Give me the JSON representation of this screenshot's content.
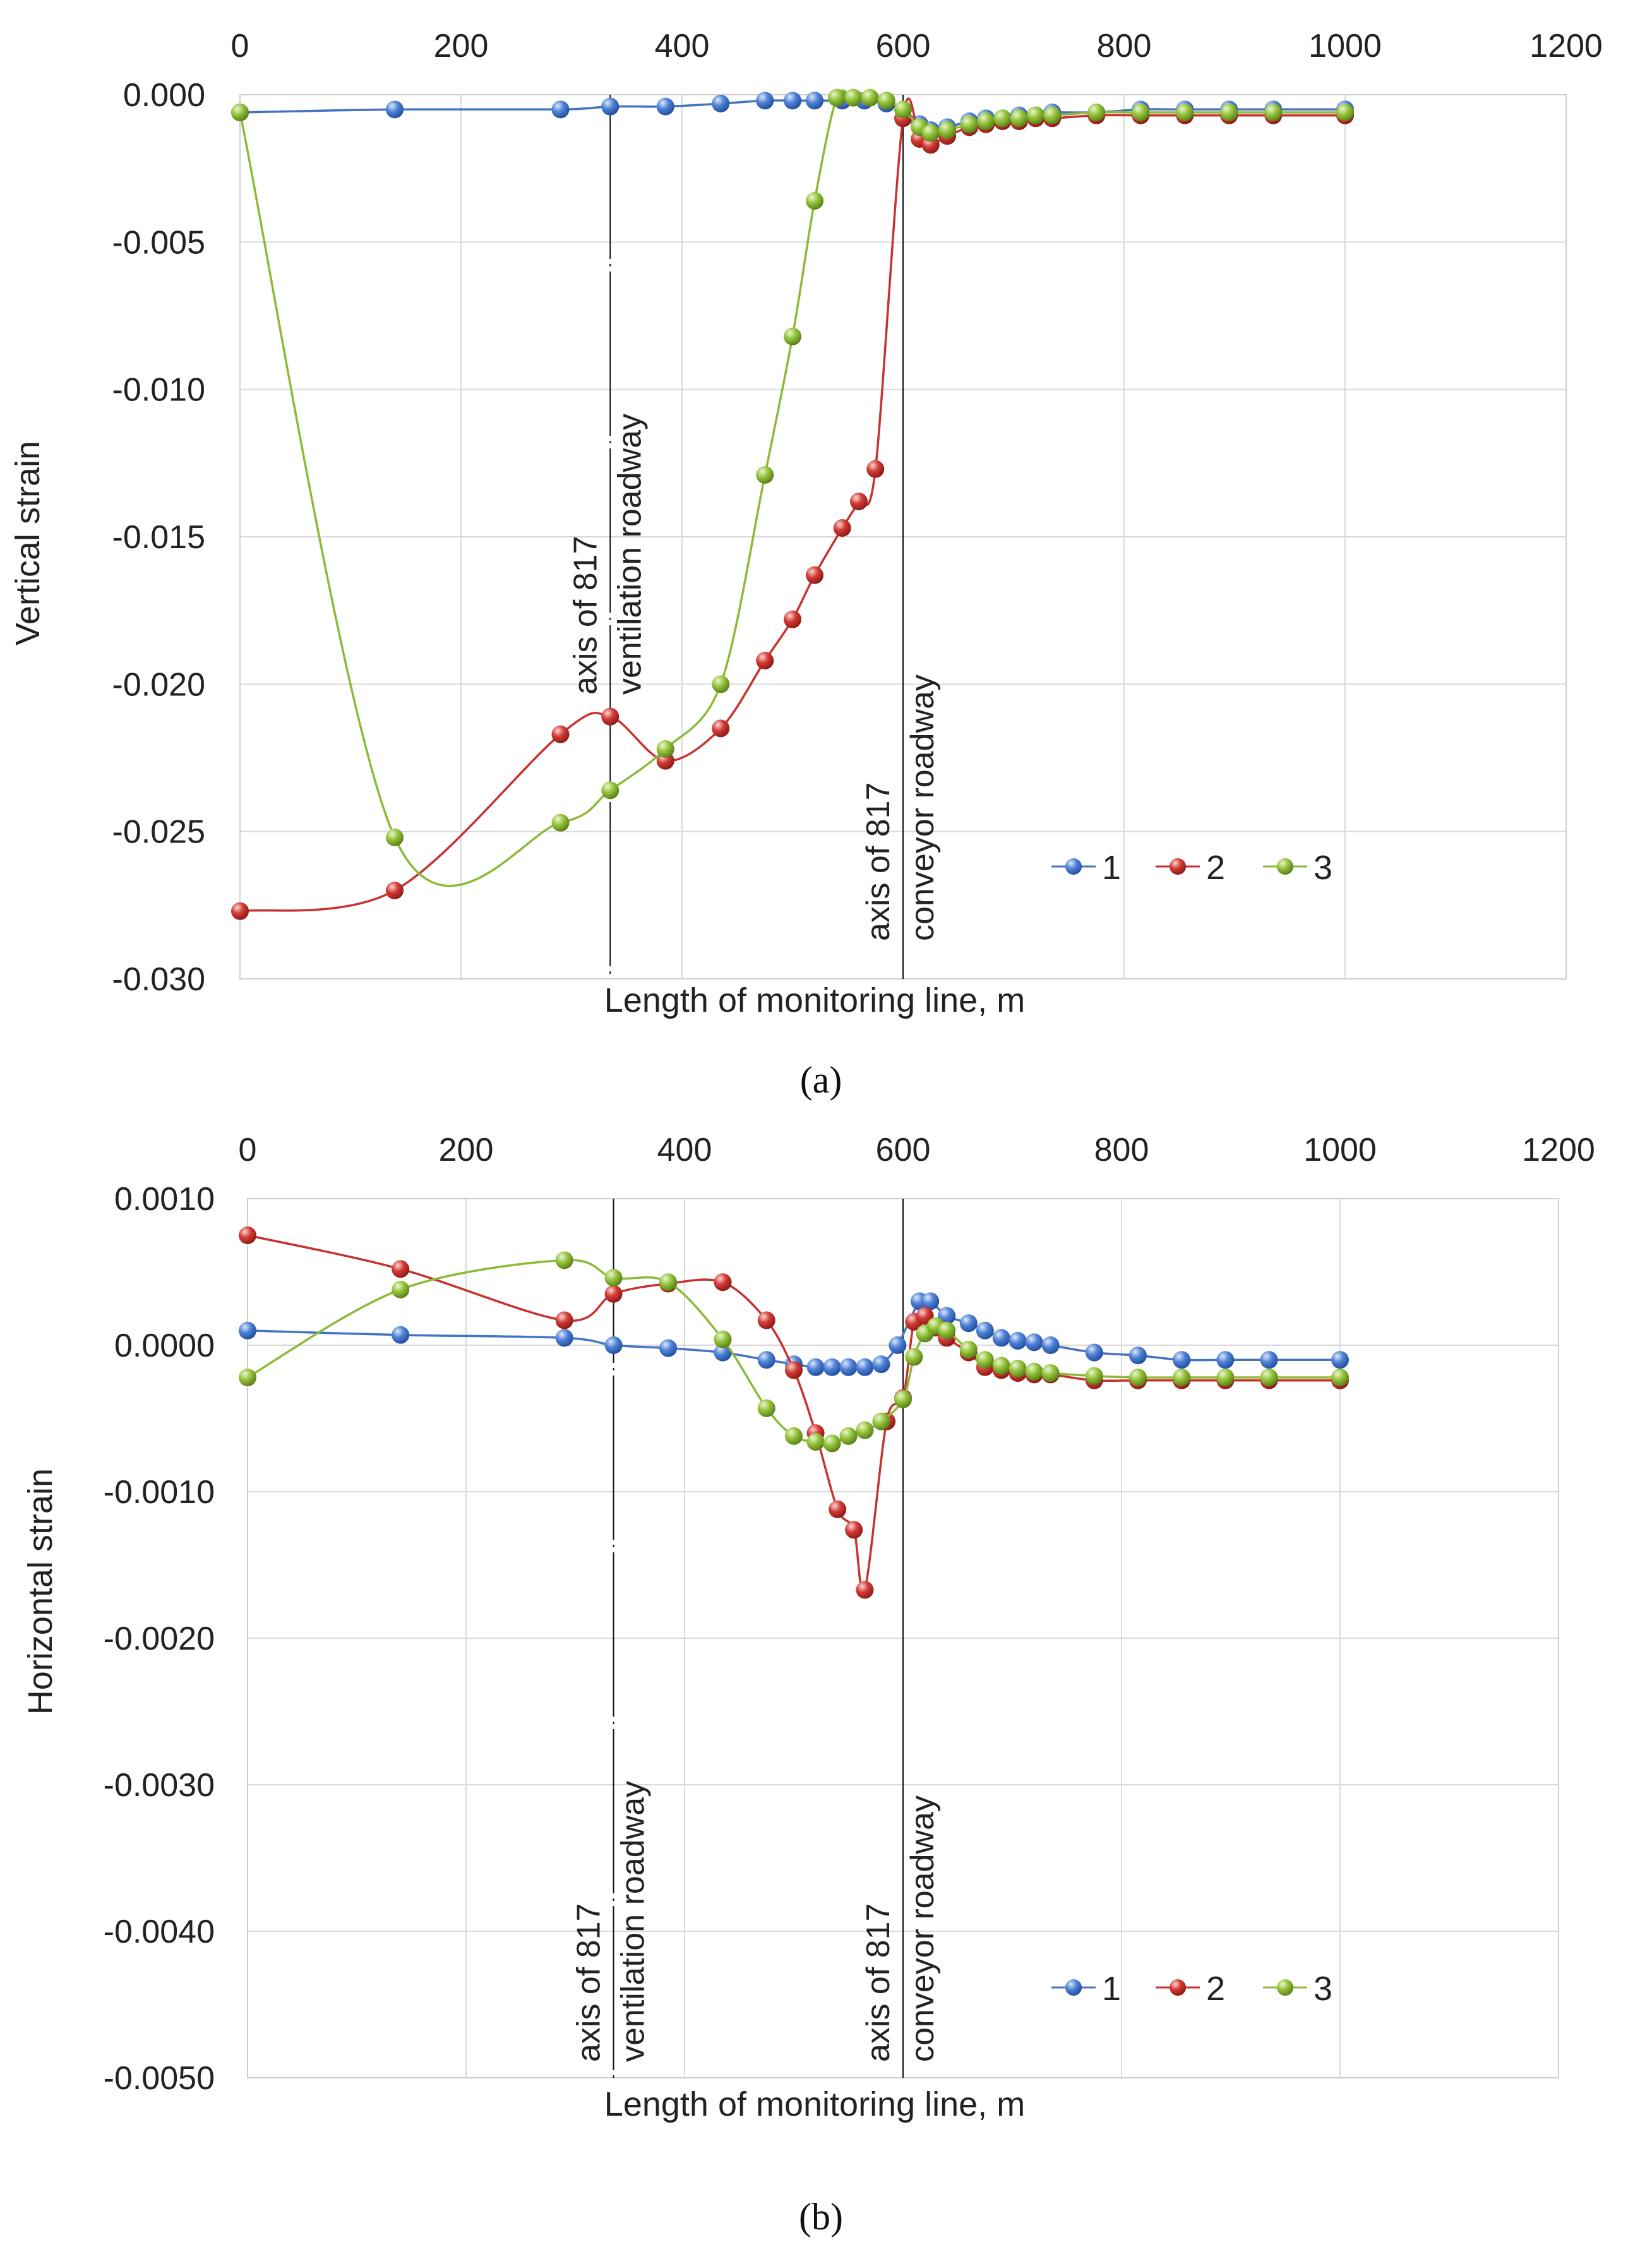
{
  "series_colors": {
    "1": "#4472c4",
    "2": "#c8312e",
    "3": "#8cba38"
  },
  "chart_data": [
    {
      "type": "line",
      "caption": "(a)",
      "title": "",
      "xlabel": "Length of monitoring line, m",
      "ylabel": "Vertical strain",
      "xlim": [
        0,
        1200
      ],
      "ylim": [
        -0.03,
        0.0
      ],
      "xticks": [
        0,
        200,
        400,
        600,
        800,
        1000,
        1200
      ],
      "yticks": [
        0.0,
        -0.005,
        -0.01,
        -0.015,
        -0.02,
        -0.025,
        -0.03
      ],
      "ytick_labels": [
        "0.000",
        "-0.005",
        "-0.010",
        "-0.015",
        "-0.020",
        "-0.025",
        "-0.030"
      ],
      "grid": true,
      "legend": {
        "position": "bottom-right",
        "labels": [
          "1",
          "2",
          "3"
        ]
      },
      "annotations": [
        {
          "x": 335,
          "lines": [
            "axis of    817",
            "ventilation roadway"
          ]
        },
        {
          "x": 600,
          "lines": [
            "axis of 817",
            "conveyor roadway"
          ]
        }
      ],
      "series": [
        {
          "name": "1",
          "x": [
            0,
            140,
            290,
            335,
            385,
            435,
            475,
            500,
            520,
            545,
            565,
            585,
            600,
            615,
            625,
            640,
            660,
            675,
            690,
            705,
            720,
            735,
            775,
            815,
            855,
            895,
            935,
            1000
          ],
          "y": [
            -0.0006,
            -0.0005,
            -0.0005,
            -0.0004,
            -0.0004,
            -0.0003,
            -0.0002,
            -0.0002,
            -0.0002,
            -0.0002,
            -0.0002,
            -0.0003,
            -0.0005,
            -0.001,
            -0.0012,
            -0.0011,
            -0.0009,
            -0.0008,
            -0.0008,
            -0.0007,
            -0.0007,
            -0.0006,
            -0.0006,
            -0.0005,
            -0.0005,
            -0.0005,
            -0.0005,
            -0.0005
          ]
        },
        {
          "name": "2",
          "x": [
            0,
            140,
            290,
            335,
            385,
            435,
            475,
            500,
            520,
            545,
            560,
            575,
            600,
            615,
            625,
            640,
            660,
            675,
            690,
            705,
            720,
            735,
            775,
            815,
            855,
            895,
            935,
            1000
          ],
          "y": [
            -0.0277,
            -0.027,
            -0.0217,
            -0.0211,
            -0.0226,
            -0.0215,
            -0.0192,
            -0.0178,
            -0.0163,
            -0.0147,
            -0.0138,
            -0.0127,
            -0.0008,
            -0.0015,
            -0.0017,
            -0.0014,
            -0.0011,
            -0.001,
            -0.0009,
            -0.0009,
            -0.0008,
            -0.0008,
            -0.0007,
            -0.0007,
            -0.0007,
            -0.0007,
            -0.0007,
            -0.0007
          ]
        },
        {
          "name": "3",
          "x": [
            0,
            140,
            290,
            335,
            385,
            435,
            475,
            500,
            520,
            540,
            555,
            570,
            585,
            600,
            615,
            625,
            640,
            660,
            675,
            690,
            705,
            720,
            735,
            775,
            815,
            855,
            895,
            935,
            1000
          ],
          "y": [
            -0.0006,
            -0.0252,
            -0.0247,
            -0.0236,
            -0.0222,
            -0.02,
            -0.0129,
            -0.0082,
            -0.0036,
            -0.0001,
            -0.0001,
            -0.0001,
            -0.0002,
            -0.0005,
            -0.0011,
            -0.0013,
            -0.0012,
            -0.001,
            -0.0009,
            -0.0008,
            -0.0008,
            -0.0007,
            -0.0007,
            -0.0006,
            -0.0006,
            -0.0006,
            -0.0006,
            -0.0006,
            -0.0006
          ]
        }
      ]
    },
    {
      "type": "line",
      "caption": "(b)",
      "title": "",
      "xlabel": "Length of monitoring line, m",
      "ylabel": "Horizontal strain",
      "xlim": [
        0,
        1200
      ],
      "ylim": [
        -0.005,
        0.001
      ],
      "xticks": [
        0,
        200,
        400,
        600,
        800,
        1000,
        1200
      ],
      "yticks": [
        0.001,
        0.0,
        -0.001,
        -0.002,
        -0.003,
        -0.004,
        -0.005
      ],
      "ytick_labels": [
        "0.0010",
        "0.0000",
        "-0.0010",
        "-0.0020",
        "-0.0030",
        "-0.0040",
        "-0.0050"
      ],
      "grid": true,
      "legend": {
        "position": "bottom-right",
        "labels": [
          "1",
          "2",
          "3"
        ]
      },
      "annotations": [
        {
          "x": 335,
          "lines": [
            "axis of    817",
            "ventilation roadway"
          ]
        },
        {
          "x": 600,
          "lines": [
            "axis of 817",
            "conveyor roadway"
          ]
        }
      ],
      "series": [
        {
          "name": "1",
          "x": [
            0,
            140,
            290,
            335,
            385,
            435,
            475,
            500,
            520,
            535,
            550,
            565,
            580,
            595,
            615,
            625,
            640,
            660,
            675,
            690,
            705,
            720,
            735,
            775,
            815,
            855,
            895,
            935,
            1000
          ],
          "y": [
            0.0001,
            7e-05,
            5e-05,
            0.0,
            -2e-05,
            -5e-05,
            -0.0001,
            -0.00013,
            -0.00015,
            -0.00015,
            -0.00015,
            -0.00015,
            -0.00013,
            0.0,
            0.0003,
            0.0003,
            0.0002,
            0.00015,
            0.0001,
            5e-05,
            3e-05,
            2e-05,
            0.0,
            -5e-05,
            -7e-05,
            -0.0001,
            -0.0001,
            -0.0001,
            -0.0001
          ]
        },
        {
          "name": "2",
          "x": [
            0,
            140,
            290,
            335,
            385,
            435,
            475,
            500,
            520,
            540,
            555,
            565,
            585,
            600,
            610,
            620,
            630,
            640,
            660,
            675,
            690,
            705,
            720,
            735,
            775,
            815,
            855,
            895,
            935,
            1000
          ],
          "y": [
            0.00075,
            0.00052,
            0.00017,
            0.00035,
            0.00042,
            0.00043,
            0.00017,
            -0.00017,
            -0.0006,
            -0.00112,
            -0.00126,
            -0.00167,
            -0.00052,
            -0.00036,
            0.00016,
            0.0002,
            0.00012,
            5e-05,
            -5e-05,
            -0.00015,
            -0.00017,
            -0.00019,
            -0.0002,
            -0.0002,
            -0.00024,
            -0.00024,
            -0.00024,
            -0.00024,
            -0.00024,
            -0.00024
          ]
        },
        {
          "name": "3",
          "x": [
            0,
            140,
            290,
            335,
            385,
            435,
            475,
            500,
            520,
            535,
            550,
            565,
            580,
            600,
            610,
            620,
            630,
            640,
            660,
            675,
            690,
            705,
            720,
            735,
            775,
            815,
            855,
            895,
            935,
            1000
          ],
          "y": [
            -0.00022,
            0.00038,
            0.00058,
            0.00046,
            0.00043,
            4e-05,
            -0.00043,
            -0.00062,
            -0.00066,
            -0.00067,
            -0.00062,
            -0.00058,
            -0.00052,
            -0.00037,
            -8e-05,
            8e-05,
            0.00013,
            0.0001,
            -3e-05,
            -0.0001,
            -0.00014,
            -0.00016,
            -0.00018,
            -0.00019,
            -0.00021,
            -0.00022,
            -0.00022,
            -0.00022,
            -0.00022,
            -0.00022
          ]
        }
      ]
    }
  ]
}
